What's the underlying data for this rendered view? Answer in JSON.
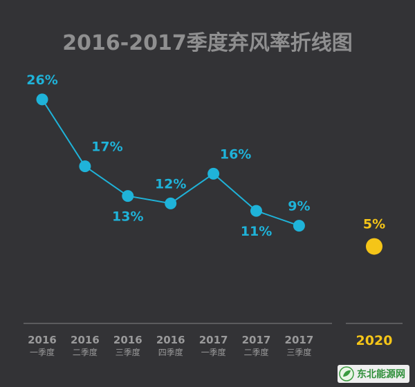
{
  "chart_data": {
    "type": "line",
    "title": "2016-2017季度弃风率折线图",
    "categories": [
      [
        "2016",
        "一季度"
      ],
      [
        "2016",
        "二季度"
      ],
      [
        "2016",
        "三季度"
      ],
      [
        "2016",
        "四季度"
      ],
      [
        "2017",
        "一季度"
      ],
      [
        "2017",
        "二季度"
      ],
      [
        "2017",
        "三季度"
      ]
    ],
    "values": [
      26,
      17,
      13,
      12,
      16,
      11,
      9
    ],
    "value_labels": [
      "26%",
      "17%",
      "13%",
      "12%",
      "16%",
      "11%",
      "9%"
    ],
    "unit": "%",
    "highlight": {
      "category": "2020",
      "value": 5,
      "label": "5%",
      "color": "#f5c518"
    },
    "series_color": "#1fb3d9",
    "grid": false,
    "xlabel": "",
    "ylabel": ""
  },
  "watermark": {
    "text": "东北能源网"
  }
}
